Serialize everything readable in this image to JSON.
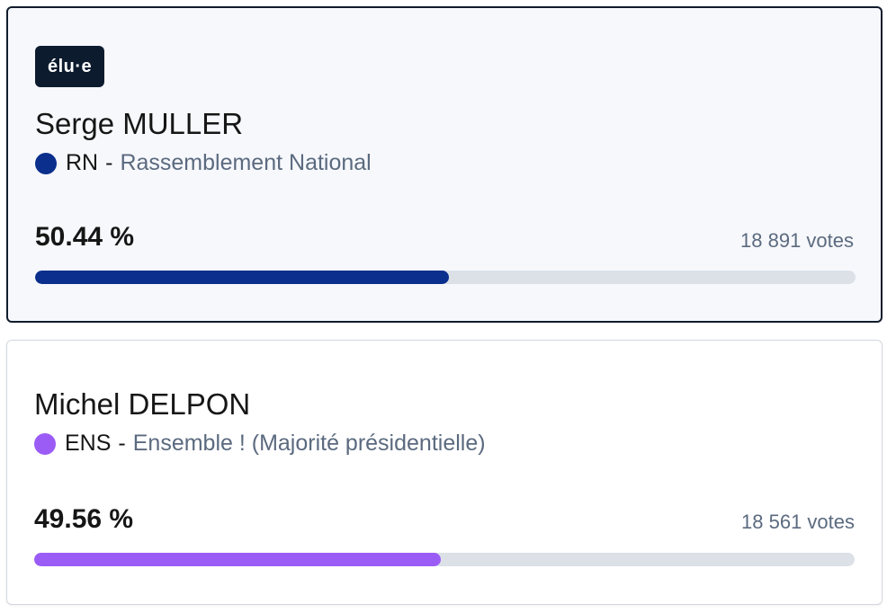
{
  "candidates": [
    {
      "elected_badge": "élu·e",
      "name": "Serge MULLER",
      "party_abbr": "RN",
      "separator": "-",
      "party_name": "Rassemblement National",
      "party_color": "#0a2f8c",
      "percent_label": "50.44 %",
      "percent_value": 50.44,
      "votes_label": "18 891 votes"
    },
    {
      "name": "Michel DELPON",
      "party_abbr": "ENS",
      "separator": "-",
      "party_name": "Ensemble ! (Majorité présidentielle)",
      "party_color": "#9b5cf6",
      "percent_label": "49.56 %",
      "percent_value": 49.56,
      "votes_label": "18 561 votes"
    }
  ]
}
